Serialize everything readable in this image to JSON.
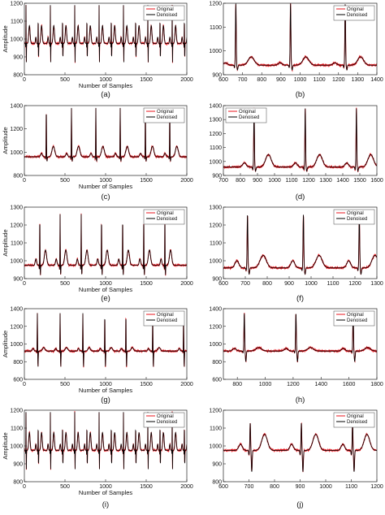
{
  "colors": {
    "original": "#e8141c",
    "denoised": "#000000",
    "axis": "#222222"
  },
  "chart_data": [
    {
      "id": "a",
      "type": "line",
      "caption": "(a)",
      "xlabel": "Number of Samples",
      "ylabel": "Amplitude",
      "xlim": [
        0,
        2000
      ],
      "ylim": [
        800,
        1200
      ],
      "xticks": [
        0,
        500,
        1000,
        1500,
        2000
      ],
      "yticks": [
        800,
        900,
        1000,
        1100,
        1200
      ],
      "legend": {
        "position": "top-right",
        "entries": [
          "Original",
          "Denoised"
        ]
      },
      "series": [
        {
          "name": "Original",
          "color": "#e8141c"
        },
        {
          "name": "Denoised",
          "color": "#000000"
        }
      ],
      "signal": {
        "baseline": 975,
        "r_peaks": [
          20,
          170,
          320,
          470,
          620,
          770,
          920,
          1070,
          1220,
          1370,
          1520,
          1670,
          1820,
          1970
        ],
        "r_amp": 1190,
        "s_amp": 870,
        "p_amp": 1010,
        "t_amp": 1075,
        "q_amp": 950
      }
    },
    {
      "id": "b",
      "type": "line",
      "caption": "(b)",
      "xlabel": "",
      "ylabel": "",
      "xlim": [
        600,
        1400
      ],
      "ylim": [
        900,
        1200
      ],
      "xticks": [
        600,
        700,
        800,
        900,
        1000,
        1100,
        1200,
        1300,
        1400
      ],
      "yticks": [
        900,
        1000,
        1100,
        1200
      ],
      "legend": {
        "position": "top-right",
        "entries": [
          "Original",
          "Denoised"
        ]
      },
      "series": [
        {
          "name": "Original",
          "color": "#e8141c"
        },
        {
          "name": "Denoised",
          "color": "#000000"
        }
      ],
      "signal": {
        "baseline": 940,
        "r_peaks": [
          665,
          950,
          1235
        ],
        "r_amp": 1200,
        "s_amp": 920,
        "p_amp": 950,
        "t_amp": 975,
        "q_amp": 930
      }
    },
    {
      "id": "c",
      "type": "line",
      "caption": "(c)",
      "xlabel": "Number of Samples",
      "ylabel": "Amplitude",
      "xlim": [
        0,
        2000
      ],
      "ylim": [
        800,
        1400
      ],
      "xticks": [
        0,
        500,
        1000,
        1500,
        2000
      ],
      "yticks": [
        800,
        1000,
        1200,
        1400
      ],
      "legend": {
        "position": "top-right",
        "entries": [
          "Original",
          "Denoised"
        ]
      },
      "series": [
        {
          "name": "Original",
          "color": "#e8141c"
        },
        {
          "name": "Denoised",
          "color": "#000000"
        }
      ],
      "signal": {
        "baseline": 960,
        "r_peaks": [
          270,
          580,
          880,
          1180,
          1490,
          1790
        ],
        "r_amp": 1380,
        "s_amp": 920,
        "p_amp": 990,
        "t_amp": 1050,
        "q_amp": 940
      }
    },
    {
      "id": "d",
      "type": "line",
      "caption": "(d)",
      "xlabel": "",
      "ylabel": "",
      "xlim": [
        700,
        1600
      ],
      "ylim": [
        900,
        1400
      ],
      "xticks": [
        700,
        800,
        900,
        1000,
        1100,
        1200,
        1300,
        1400,
        1500,
        1600
      ],
      "yticks": [
        900,
        1000,
        1100,
        1200,
        1300,
        1400
      ],
      "legend": {
        "position": "top-left",
        "entries": [
          "Original",
          "Denoised"
        ]
      },
      "series": [
        {
          "name": "Original",
          "color": "#e8141c"
        },
        {
          "name": "Denoised",
          "color": "#000000"
        }
      ],
      "signal": {
        "baseline": 960,
        "r_peaks": [
          880,
          1180,
          1480
        ],
        "r_amp": 1380,
        "s_amp": 930,
        "p_amp": 990,
        "t_amp": 1050,
        "q_amp": 940
      }
    },
    {
      "id": "e",
      "type": "line",
      "caption": "(e)",
      "xlabel": "Number of Samples",
      "ylabel": "Amplitude",
      "xlim": [
        0,
        2000
      ],
      "ylim": [
        900,
        1300
      ],
      "xticks": [
        0,
        500,
        1000,
        1500,
        2000
      ],
      "yticks": [
        900,
        1000,
        1100,
        1200,
        1300
      ],
      "legend": {
        "position": "top-right",
        "entries": [
          "Original",
          "Denoised"
        ]
      },
      "series": [
        {
          "name": "Original",
          "color": "#e8141c"
        },
        {
          "name": "Denoised",
          "color": "#000000"
        }
      ],
      "signal": {
        "baseline": 975,
        "r_peaks": [
          190,
          440,
          700,
          950,
          1210,
          1470,
          1730
        ],
        "r_amp": 1260,
        "s_amp": 920,
        "p_amp": 1010,
        "t_amp": 1060,
        "q_amp": 950
      }
    },
    {
      "id": "f",
      "type": "line",
      "caption": "(f)",
      "xlabel": "",
      "ylabel": "",
      "xlim": [
        600,
        1300
      ],
      "ylim": [
        900,
        1300
      ],
      "xticks": [
        600,
        700,
        800,
        900,
        1000,
        1100,
        1200,
        1300
      ],
      "yticks": [
        900,
        1000,
        1100,
        1200,
        1300
      ],
      "legend": {
        "position": "top-right",
        "entries": [
          "Original",
          "Denoised"
        ]
      },
      "series": [
        {
          "name": "Original",
          "color": "#e8141c"
        },
        {
          "name": "Denoised",
          "color": "#000000"
        }
      ],
      "signal": {
        "baseline": 960,
        "r_peaks": [
          710,
          965,
          1220
        ],
        "r_amp": 1260,
        "s_amp": 925,
        "p_amp": 1000,
        "t_amp": 1030,
        "q_amp": 945
      }
    },
    {
      "id": "g",
      "type": "line",
      "caption": "(g)",
      "xlabel": "Number of Samples",
      "ylabel": "Amplitude",
      "xlim": [
        0,
        2000
      ],
      "ylim": [
        600,
        1400
      ],
      "xticks": [
        0,
        500,
        1000,
        1500,
        2000
      ],
      "yticks": [
        600,
        800,
        1000,
        1200,
        1400
      ],
      "legend": {
        "position": "top-right",
        "entries": [
          "Original",
          "Denoised"
        ]
      },
      "series": [
        {
          "name": "Original",
          "color": "#e8141c"
        },
        {
          "name": "Denoised",
          "color": "#000000"
        }
      ],
      "signal": {
        "baseline": 920,
        "r_peaks": [
          160,
          440,
          720,
          990,
          1250,
          1580,
          1960
        ],
        "r_amp": 1350,
        "s_amp": 740,
        "p_amp": 950,
        "t_amp": 960,
        "q_amp": 900
      }
    },
    {
      "id": "h",
      "type": "line",
      "caption": "(h)",
      "xlabel": "",
      "ylabel": "",
      "xlim": [
        700,
        1800
      ],
      "ylim": [
        600,
        1400
      ],
      "xticks": [
        800,
        1000,
        1200,
        1400,
        1600,
        1800
      ],
      "yticks": [
        600,
        800,
        1000,
        1200,
        1400
      ],
      "legend": {
        "position": "top-right",
        "entries": [
          "Original",
          "Denoised"
        ]
      },
      "series": [
        {
          "name": "Original",
          "color": "#e8141c"
        },
        {
          "name": "Denoised",
          "color": "#000000"
        }
      ],
      "signal": {
        "baseline": 920,
        "r_peaks": [
          850,
          1220,
          1630
        ],
        "r_amp": 1350,
        "s_amp": 800,
        "p_amp": 950,
        "t_amp": 960,
        "q_amp": 900
      }
    },
    {
      "id": "i",
      "type": "line",
      "caption": "(i)",
      "xlabel": "Number of Samples",
      "ylabel": "Amplitude",
      "xlim": [
        0,
        2000
      ],
      "ylim": [
        800,
        1200
      ],
      "xticks": [
        0,
        500,
        1000,
        1500,
        2000
      ],
      "yticks": [
        800,
        900,
        1000,
        1100,
        1200
      ],
      "legend": {
        "position": "top-right",
        "entries": [
          "Original",
          "Denoised"
        ]
      },
      "series": [
        {
          "name": "Original",
          "color": "#e8141c"
        },
        {
          "name": "Denoised",
          "color": "#000000"
        }
      ],
      "signal": {
        "baseline": 975,
        "r_peaks": [
          20,
          170,
          320,
          470,
          620,
          770,
          920,
          1070,
          1220,
          1370,
          1520,
          1670,
          1820,
          1970
        ],
        "r_amp": 1190,
        "s_amp": 870,
        "p_amp": 1010,
        "t_amp": 1075,
        "q_amp": 950
      }
    },
    {
      "id": "j",
      "type": "line",
      "caption": "(j)",
      "xlabel": "",
      "ylabel": "",
      "xlim": [
        600,
        1200
      ],
      "ylim": [
        800,
        1200
      ],
      "xticks": [
        600,
        700,
        800,
        900,
        1000,
        1100,
        1200
      ],
      "yticks": [
        800,
        900,
        1000,
        1100,
        1200
      ],
      "legend": {
        "position": "top-right",
        "entries": [
          "Original",
          "Denoised"
        ]
      },
      "series": [
        {
          "name": "Original",
          "color": "#e8141c"
        },
        {
          "name": "Denoised",
          "color": "#000000"
        }
      ],
      "signal": {
        "baseline": 975,
        "r_peaks": [
          705,
          905,
          1105
        ],
        "r_amp": 1130,
        "s_amp": 855,
        "p_amp": 1010,
        "t_amp": 1065,
        "q_amp": 950
      }
    }
  ]
}
